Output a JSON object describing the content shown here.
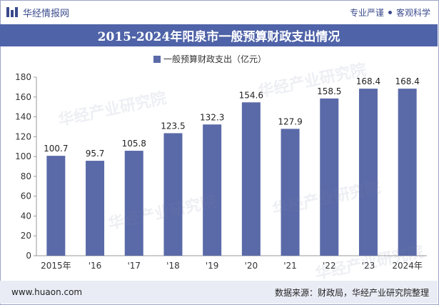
{
  "header": {
    "brand_name": "华经情报网",
    "slogan_left": "专业严谨",
    "slogan_right": "客观科学"
  },
  "title": "2015-2024年阳泉市一般预算财政支出情况",
  "footer": {
    "url": "www.huaon.com",
    "source": "数据来源：财政局，华经产业研究院整理"
  },
  "watermark": "华经产业研究院",
  "colors": {
    "bar": "#5a6aa8",
    "title_bg": "#4f63a8",
    "accent": "#3a4a8c"
  },
  "chart_data": {
    "type": "bar",
    "categories": [
      "2015年",
      "'16",
      "'17",
      "'18",
      "'19",
      "'20",
      "'21",
      "'22",
      "'23",
      "2024年"
    ],
    "series": [
      {
        "name": "一般预算财政支出（亿元）",
        "values": [
          100.7,
          95.7,
          105.8,
          123.5,
          132.3,
          154.6,
          127.9,
          158.5,
          168.4,
          168.4
        ]
      }
    ],
    "ylim": [
      0,
      180
    ],
    "yticks": [
      0,
      20,
      40,
      60,
      80,
      100,
      120,
      140,
      160,
      180
    ],
    "legend_position": "top-center",
    "grid": false
  }
}
